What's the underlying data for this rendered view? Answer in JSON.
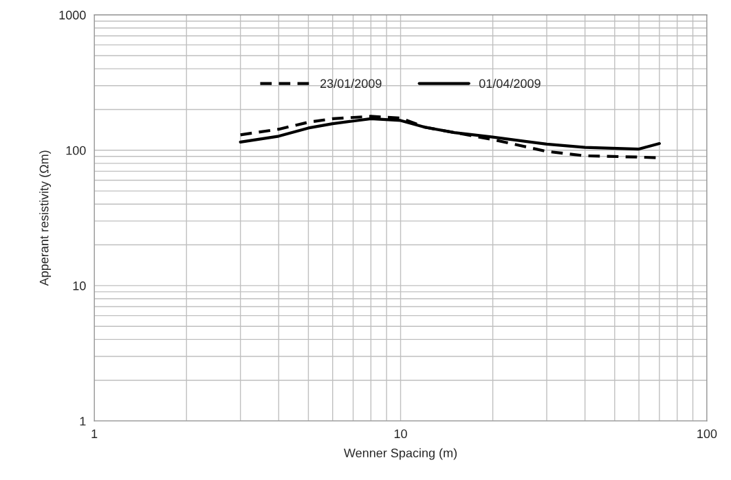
{
  "chart_data": {
    "type": "line",
    "xlabel": "Wenner Spacing (m)",
    "ylabel": "Apperant resistivity (Ωm)",
    "log": "xy",
    "xlim": [
      1,
      100
    ],
    "ylim": [
      1,
      1000
    ],
    "xticks": [
      1,
      10,
      100
    ],
    "yticks": [
      1,
      10,
      100,
      1000
    ],
    "grid": true,
    "legend": "top",
    "marker": "none",
    "series": [
      {
        "name": "23/01/2009",
        "color": "#000000",
        "line_style": "dashed",
        "x": [
          3,
          4,
          5,
          6,
          8,
          10,
          12,
          15,
          20,
          30,
          40,
          60,
          70
        ],
        "values": [
          130,
          143,
          161,
          171,
          178,
          173,
          148,
          135,
          120,
          98,
          91,
          89,
          88
        ]
      },
      {
        "name": "01/04/2009",
        "color": "#000000",
        "line_style": "solid",
        "x": [
          3,
          4,
          5,
          6,
          8,
          10,
          12,
          15,
          20,
          30,
          40,
          60,
          70
        ],
        "values": [
          115,
          127,
          146,
          157,
          171,
          166,
          148,
          135,
          125,
          111,
          105,
          102,
          112
        ]
      }
    ]
  }
}
